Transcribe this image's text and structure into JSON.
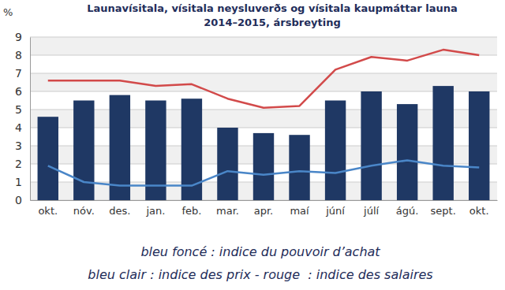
{
  "chart_data": {
    "type": "bar",
    "title": "Launavísitala, vísitala neysluverðs og vísitala kaupmáttar launa",
    "subtitle": "2014–2015, ársbreyting",
    "y_label": "%",
    "categories": [
      "okt.",
      "nóv.",
      "des.",
      "jan.",
      "feb.",
      "mar.",
      "apr.",
      "maí",
      "júní",
      "júlí",
      "ágú.",
      "sept.",
      "okt."
    ],
    "series": [
      {
        "type": "bar",
        "color": "#1f3864",
        "values": [
          4.6,
          5.5,
          5.8,
          5.5,
          5.6,
          4.0,
          3.7,
          3.6,
          5.5,
          6.0,
          5.3,
          6.3,
          6.0
        ]
      },
      {
        "type": "line",
        "color": "#4a86c8",
        "values": [
          1.9,
          1.0,
          0.8,
          0.8,
          0.8,
          1.6,
          1.4,
          1.6,
          1.5,
          1.9,
          2.2,
          1.9,
          1.8
        ]
      },
      {
        "type": "line",
        "color": "#d24a4a",
        "values": [
          6.6,
          6.6,
          6.6,
          6.3,
          6.4,
          5.6,
          5.1,
          5.2,
          7.2,
          7.9,
          7.7,
          8.3,
          8.0
        ]
      }
    ],
    "ylim": [
      0,
      9
    ],
    "yticks": [
      0,
      1,
      2,
      3,
      4,
      5,
      6,
      7,
      8,
      9
    ],
    "grid": true,
    "annotations": [
      "bleu foncé : indice du pouvoir d’achat",
      "bleu clair : indice des prix - rouge  : indice des salaires"
    ]
  }
}
